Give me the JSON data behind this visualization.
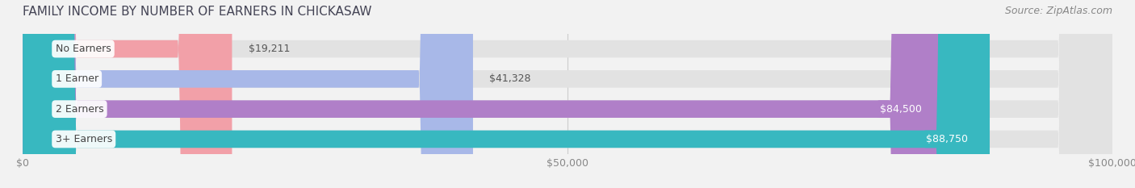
{
  "title": "FAMILY INCOME BY NUMBER OF EARNERS IN CHICKASAW",
  "source": "Source: ZipAtlas.com",
  "categories": [
    "No Earners",
    "1 Earner",
    "2 Earners",
    "3+ Earners"
  ],
  "values": [
    19211,
    41328,
    84500,
    88750
  ],
  "bar_colors": [
    "#f2a0a8",
    "#a8b8e8",
    "#b07fc8",
    "#38b8c0"
  ],
  "label_colors_inside": [
    false,
    false,
    true,
    true
  ],
  "x_max": 100000,
  "x_ticks": [
    0,
    50000,
    100000
  ],
  "x_tick_labels": [
    "$0",
    "$50,000",
    "$100,000"
  ],
  "background_color": "#f2f2f2",
  "bar_bg_color": "#e2e2e2",
  "title_fontsize": 11,
  "source_fontsize": 9,
  "tick_fontsize": 9,
  "label_fontsize": 9,
  "value_fontsize": 9
}
